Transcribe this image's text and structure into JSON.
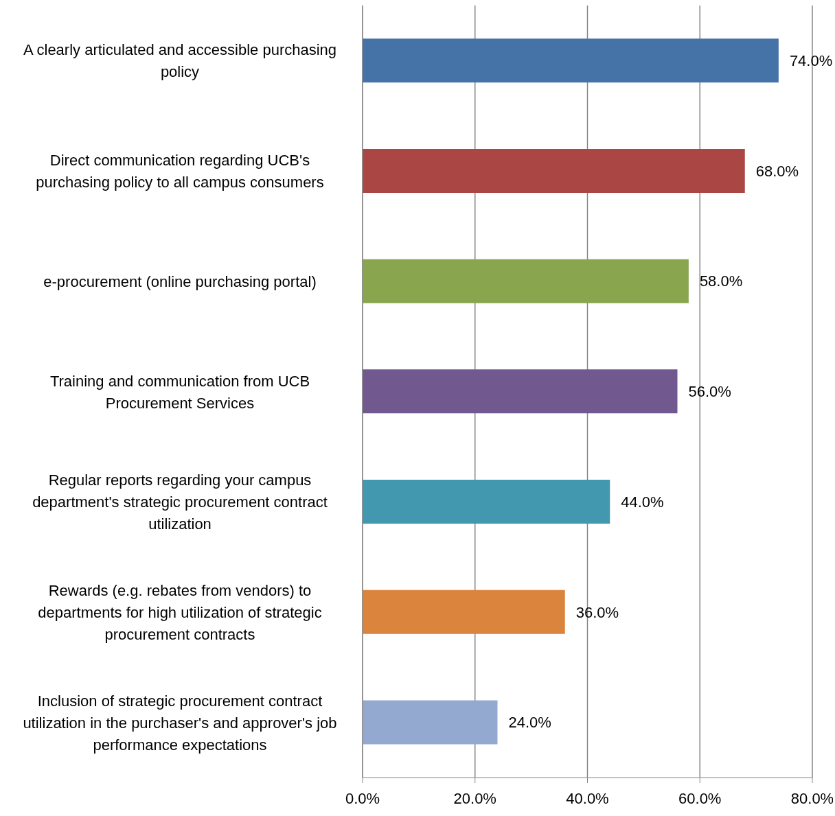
{
  "chart_data": {
    "type": "bar",
    "orientation": "horizontal",
    "categories": [
      "A clearly articulated and accessible purchasing policy",
      "Direct communication regarding UCB's purchasing policy to all campus consumers",
      "e-procurement (online purchasing portal)",
      "Training and communication from UCB Procurement Services",
      "Regular reports regarding your campus department's strategic procurement contract utilization",
      "Rewards (e.g. rebates from vendors) to departments for high utilization of strategic procurement contracts",
      "Inclusion of strategic procurement contract utilization in the purchaser's and approver's job performance expectations"
    ],
    "values": [
      74,
      68,
      58,
      56,
      44,
      36,
      24
    ],
    "colors": [
      "#4573a7",
      "#aa4643",
      "#89a54e",
      "#71588f",
      "#4198af",
      "#db843d",
      "#93a9cf"
    ],
    "value_labels": [
      "74.0%",
      "68.0%",
      "58.0%",
      "56.0%",
      "44.0%",
      "36.0%",
      "24.0%"
    ],
    "xlim": [
      0,
      80
    ],
    "xticks": [
      {
        "value": 0,
        "label": "0.0%"
      },
      {
        "value": 20,
        "label": "20.0%"
      },
      {
        "value": 40,
        "label": "40.0%"
      },
      {
        "value": 60,
        "label": "60.0%"
      },
      {
        "value": 80,
        "label": "80.0%"
      }
    ],
    "grid": "x",
    "legend": false
  }
}
